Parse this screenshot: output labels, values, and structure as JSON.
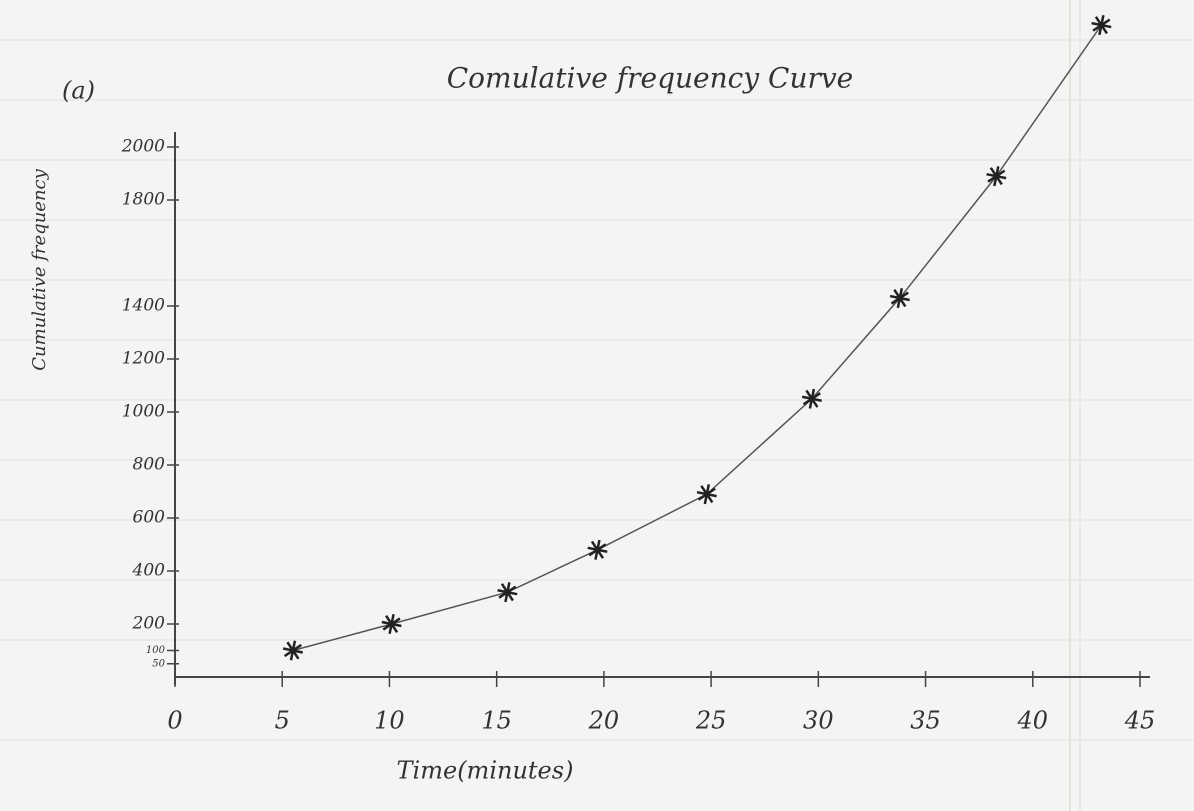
{
  "chart_data": {
    "type": "line",
    "label": "(a)",
    "title": "Comulative frequency Curve",
    "x_label": "Time(minutes)",
    "y_label": "Cumulative frequency",
    "x": [
      5.5,
      10.1,
      15.5,
      19.7,
      24.8,
      29.7,
      33.8,
      38.3,
      43.2
    ],
    "values": [
      100,
      200,
      320,
      480,
      690,
      1050,
      1430,
      1890,
      2460
    ],
    "color": "#555555",
    "marker": "asterisk",
    "xlim": [
      0,
      45
    ],
    "xticks": [
      0,
      5,
      10,
      15,
      20,
      25,
      30,
      35,
      40,
      45
    ],
    "ylim": [
      0,
      2000
    ],
    "yticks": [
      50,
      100,
      200,
      400,
      600,
      800,
      1000,
      1200,
      1400,
      1800,
      2000
    ]
  }
}
